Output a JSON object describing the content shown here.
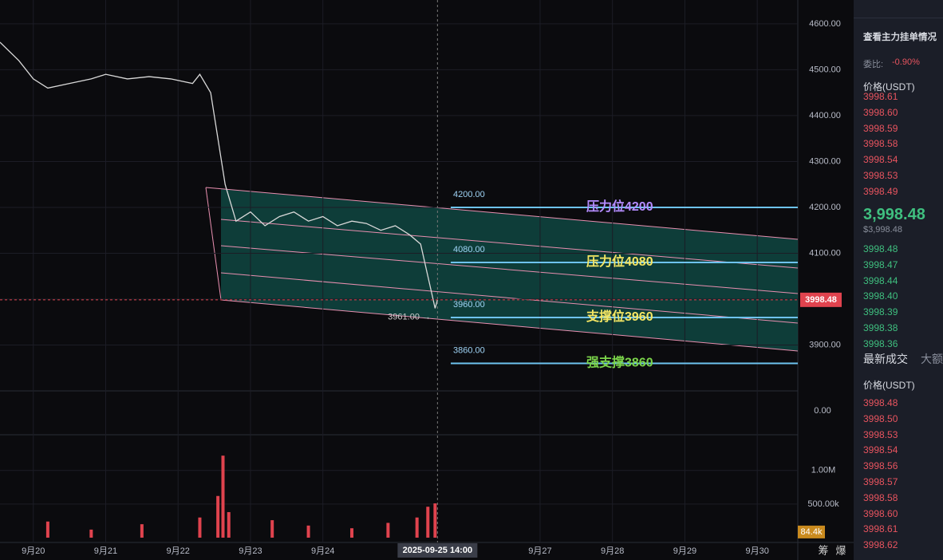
{
  "chart_data": {
    "type": "line",
    "x": [
      19.54,
      19.8,
      20.0,
      20.2,
      20.5,
      20.8,
      21.0,
      21.3,
      21.6,
      21.9,
      22.2,
      22.3,
      22.45,
      22.55,
      22.65,
      22.8,
      23.0,
      23.2,
      23.4,
      23.6,
      23.8,
      24.0,
      24.2,
      24.4,
      24.6,
      24.8,
      25.0,
      25.2,
      25.35,
      25.45,
      25.55,
      25.583
    ],
    "series": [
      {
        "name": "ETH/USDT",
        "color": "#d9d9d9",
        "values": [
          4560,
          4520,
          4480,
          4460,
          4470,
          4480,
          4490,
          4480,
          4485,
          4480,
          4470,
          4490,
          4450,
          4350,
          4250,
          4170,
          4190,
          4160,
          4180,
          4190,
          4170,
          4180,
          4160,
          4170,
          4165,
          4150,
          4160,
          4140,
          4120,
          4050,
          3980,
          3998.48
        ]
      }
    ],
    "xlim": [
      19.54,
      30.56
    ],
    "ylim": [
      3800,
      4652
    ],
    "xticks": [
      {
        "value": 20,
        "label": "9月20"
      },
      {
        "value": 21,
        "label": "9月21"
      },
      {
        "value": 22,
        "label": "9月22"
      },
      {
        "value": 23,
        "label": "9月23"
      },
      {
        "value": 24,
        "label": "9月24"
      },
      {
        "value": 27,
        "label": "9月27"
      },
      {
        "value": 28,
        "label": "9月28"
      },
      {
        "value": 29,
        "label": "9月29"
      },
      {
        "value": 30,
        "label": "9月30"
      }
    ],
    "yticks": [
      {
        "value": 3900,
        "label": "3900.00"
      },
      {
        "value": 4000,
        "label": "4000.00"
      },
      {
        "value": 4100,
        "label": "4100.00"
      },
      {
        "value": 4200,
        "label": "4200.00"
      },
      {
        "value": 4300,
        "label": "4300.00"
      },
      {
        "value": 4400,
        "label": "4400.00"
      },
      {
        "value": 4500,
        "label": "4500.00"
      },
      {
        "value": 4600,
        "label": "4600.00"
      }
    ],
    "grid": true,
    "crosshair": {
      "value": 25.583,
      "label": "2025-09-25 14:00"
    },
    "last_price": {
      "value": 3998.48,
      "label": "3998.48"
    },
    "low_marker": {
      "value": 3961,
      "label": "3961.00 →"
    },
    "levels": [
      {
        "value": 4200,
        "label": "4200.00",
        "annotation": "压力位4200",
        "color": "#b48cff"
      },
      {
        "value": 4080,
        "label": "4080.00",
        "annotation": "压力位4080",
        "color": "#f5e663"
      },
      {
        "value": 3960,
        "label": "3960.00",
        "annotation": "支撑位3960",
        "color": "#f5e663"
      },
      {
        "value": 3860,
        "label": "3860.00",
        "annotation": "强支撑3860",
        "color": "#7bd44a"
      }
    ],
    "macd_ylim": [
      -40,
      40
    ],
    "macd_yticks": [
      {
        "value": 0,
        "label": "0.00"
      }
    ],
    "volume": {
      "x": [
        20.2,
        20.8,
        21.5,
        22.3,
        22.55,
        22.62,
        22.7,
        23.3,
        23.8,
        24.4,
        24.9,
        25.3,
        25.45,
        25.55
      ],
      "values": [
        240000,
        120000,
        200000,
        300000,
        620000,
        1220000,
        380000,
        260000,
        180000,
        140000,
        220000,
        300000,
        460000,
        510000
      ],
      "color": "#e0434e"
    },
    "volume_ylim": [
      0,
      1400000
    ],
    "volume_yticks": [
      {
        "value": 1000000,
        "label": "1.00M"
      },
      {
        "value": 500000,
        "label": "500.00k"
      }
    ],
    "volume_current": {
      "value": 84400,
      "label": "84.4k"
    }
  },
  "panel": {
    "link": "查看主力挂单情况",
    "ratio_label": "委比:",
    "ratio": "-0.90%",
    "price_header": "价格(USDT)",
    "asks": [
      "3998.61",
      "3998.60",
      "3998.59",
      "3998.58",
      "3998.54",
      "3998.53",
      "3998.49"
    ],
    "last": "3,998.48",
    "last_usd": "$3,998.48",
    "bids": [
      "3998.48",
      "3998.47",
      "3998.44",
      "3998.40",
      "3998.39",
      "3998.38",
      "3998.36"
    ],
    "tab_trades": "最新成交",
    "tab_large": "大额",
    "trades_header": "价格(USDT)",
    "trades": [
      "3998.48",
      "3998.50",
      "3998.53",
      "3998.54",
      "3998.56",
      "3998.57",
      "3998.58",
      "3998.60",
      "3998.61",
      "3998.62"
    ]
  },
  "footer": {
    "a": "筹",
    "b": "爆"
  }
}
